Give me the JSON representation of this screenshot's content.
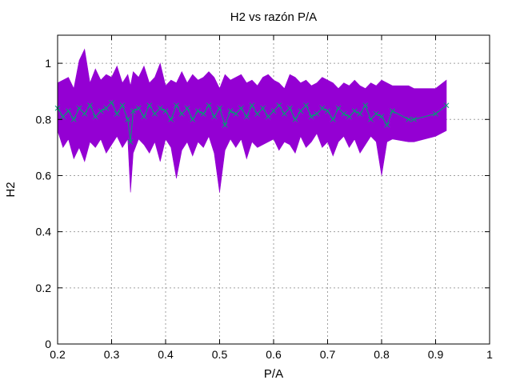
{
  "chart_data": {
    "type": "line",
    "title": "H2 vs razón P/A",
    "xlabel": "P/A",
    "ylabel": "H2",
    "xlim": [
      0.2,
      1.0
    ],
    "ylim": [
      0,
      1.1
    ],
    "xticks": [
      0.2,
      0.3,
      0.4,
      0.5,
      0.6,
      0.7,
      0.8,
      0.9,
      1.0
    ],
    "xtick_labels": [
      "0.2",
      "0.3",
      "0.4",
      "0.5",
      "0.6",
      "0.7",
      "0.8",
      "0.9",
      "1"
    ],
    "yticks": [
      0,
      0.2,
      0.4,
      0.6,
      0.8,
      1.0
    ],
    "ytick_labels": [
      "0",
      "0.2",
      "0.4",
      "0.6",
      "0.8",
      "1"
    ],
    "grid": true,
    "colors": {
      "band": "#9400d3",
      "line": "#009e73"
    },
    "series": [
      {
        "x": [
          0.2,
          0.21,
          0.22,
          0.23,
          0.24,
          0.25,
          0.26,
          0.27,
          0.28,
          0.29,
          0.3,
          0.31,
          0.32,
          0.33,
          0.335,
          0.34,
          0.35,
          0.36,
          0.37,
          0.38,
          0.39,
          0.4,
          0.41,
          0.42,
          0.43,
          0.44,
          0.45,
          0.46,
          0.47,
          0.48,
          0.49,
          0.5,
          0.51,
          0.52,
          0.53,
          0.54,
          0.55,
          0.56,
          0.57,
          0.58,
          0.59,
          0.6,
          0.61,
          0.62,
          0.63,
          0.64,
          0.65,
          0.66,
          0.67,
          0.68,
          0.69,
          0.7,
          0.71,
          0.72,
          0.73,
          0.74,
          0.75,
          0.76,
          0.77,
          0.78,
          0.79,
          0.8,
          0.81,
          0.82,
          0.85,
          0.86,
          0.9,
          0.92
        ],
        "y": [
          0.84,
          0.81,
          0.83,
          0.8,
          0.84,
          0.82,
          0.85,
          0.81,
          0.83,
          0.84,
          0.86,
          0.82,
          0.85,
          0.8,
          0.72,
          0.83,
          0.84,
          0.81,
          0.85,
          0.82,
          0.84,
          0.83,
          0.8,
          0.85,
          0.82,
          0.84,
          0.8,
          0.83,
          0.82,
          0.85,
          0.81,
          0.84,
          0.78,
          0.83,
          0.82,
          0.84,
          0.81,
          0.85,
          0.82,
          0.84,
          0.81,
          0.83,
          0.85,
          0.82,
          0.84,
          0.8,
          0.83,
          0.85,
          0.81,
          0.82,
          0.84,
          0.83,
          0.8,
          0.84,
          0.82,
          0.81,
          0.83,
          0.82,
          0.85,
          0.8,
          0.82,
          0.81,
          0.78,
          0.83,
          0.8,
          0.8,
          0.82,
          0.85
        ],
        "y_upper": [
          0.93,
          0.94,
          0.95,
          0.91,
          1.01,
          1.05,
          0.93,
          0.98,
          0.94,
          0.96,
          0.95,
          0.99,
          0.93,
          0.96,
          0.92,
          0.97,
          0.95,
          0.99,
          0.93,
          0.95,
          1.0,
          0.92,
          0.94,
          0.93,
          0.97,
          0.93,
          0.96,
          0.94,
          0.95,
          0.97,
          0.95,
          0.91,
          0.96,
          0.94,
          0.95,
          0.96,
          0.93,
          0.94,
          0.92,
          0.95,
          0.96,
          0.94,
          0.93,
          0.91,
          0.96,
          0.95,
          0.93,
          0.94,
          0.92,
          0.93,
          0.95,
          0.94,
          0.93,
          0.91,
          0.93,
          0.92,
          0.94,
          0.92,
          0.91,
          0.93,
          0.92,
          0.94,
          0.93,
          0.92,
          0.92,
          0.91,
          0.91,
          0.94
        ],
        "y_lower": [
          0.76,
          0.7,
          0.73,
          0.66,
          0.7,
          0.65,
          0.72,
          0.7,
          0.73,
          0.68,
          0.71,
          0.74,
          0.7,
          0.73,
          0.54,
          0.68,
          0.73,
          0.71,
          0.68,
          0.72,
          0.65,
          0.73,
          0.7,
          0.59,
          0.69,
          0.72,
          0.67,
          0.72,
          0.7,
          0.74,
          0.68,
          0.54,
          0.69,
          0.73,
          0.7,
          0.73,
          0.66,
          0.72,
          0.7,
          0.71,
          0.72,
          0.73,
          0.69,
          0.72,
          0.71,
          0.68,
          0.74,
          0.7,
          0.72,
          0.75,
          0.7,
          0.72,
          0.67,
          0.72,
          0.74,
          0.7,
          0.73,
          0.68,
          0.71,
          0.74,
          0.72,
          0.6,
          0.72,
          0.73,
          0.72,
          0.72,
          0.74,
          0.76
        ]
      }
    ]
  }
}
